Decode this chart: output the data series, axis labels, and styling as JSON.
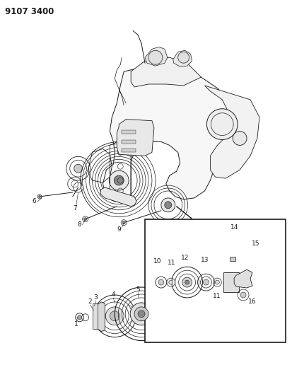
{
  "title": "9107 3400",
  "background_color": "#ffffff",
  "line_color": "#1a1a1a",
  "fig_width": 4.13,
  "fig_height": 5.33,
  "dpi": 100,
  "title_fontsize": 8.5,
  "title_fontweight": "bold",
  "label_fontsize": 6.5
}
